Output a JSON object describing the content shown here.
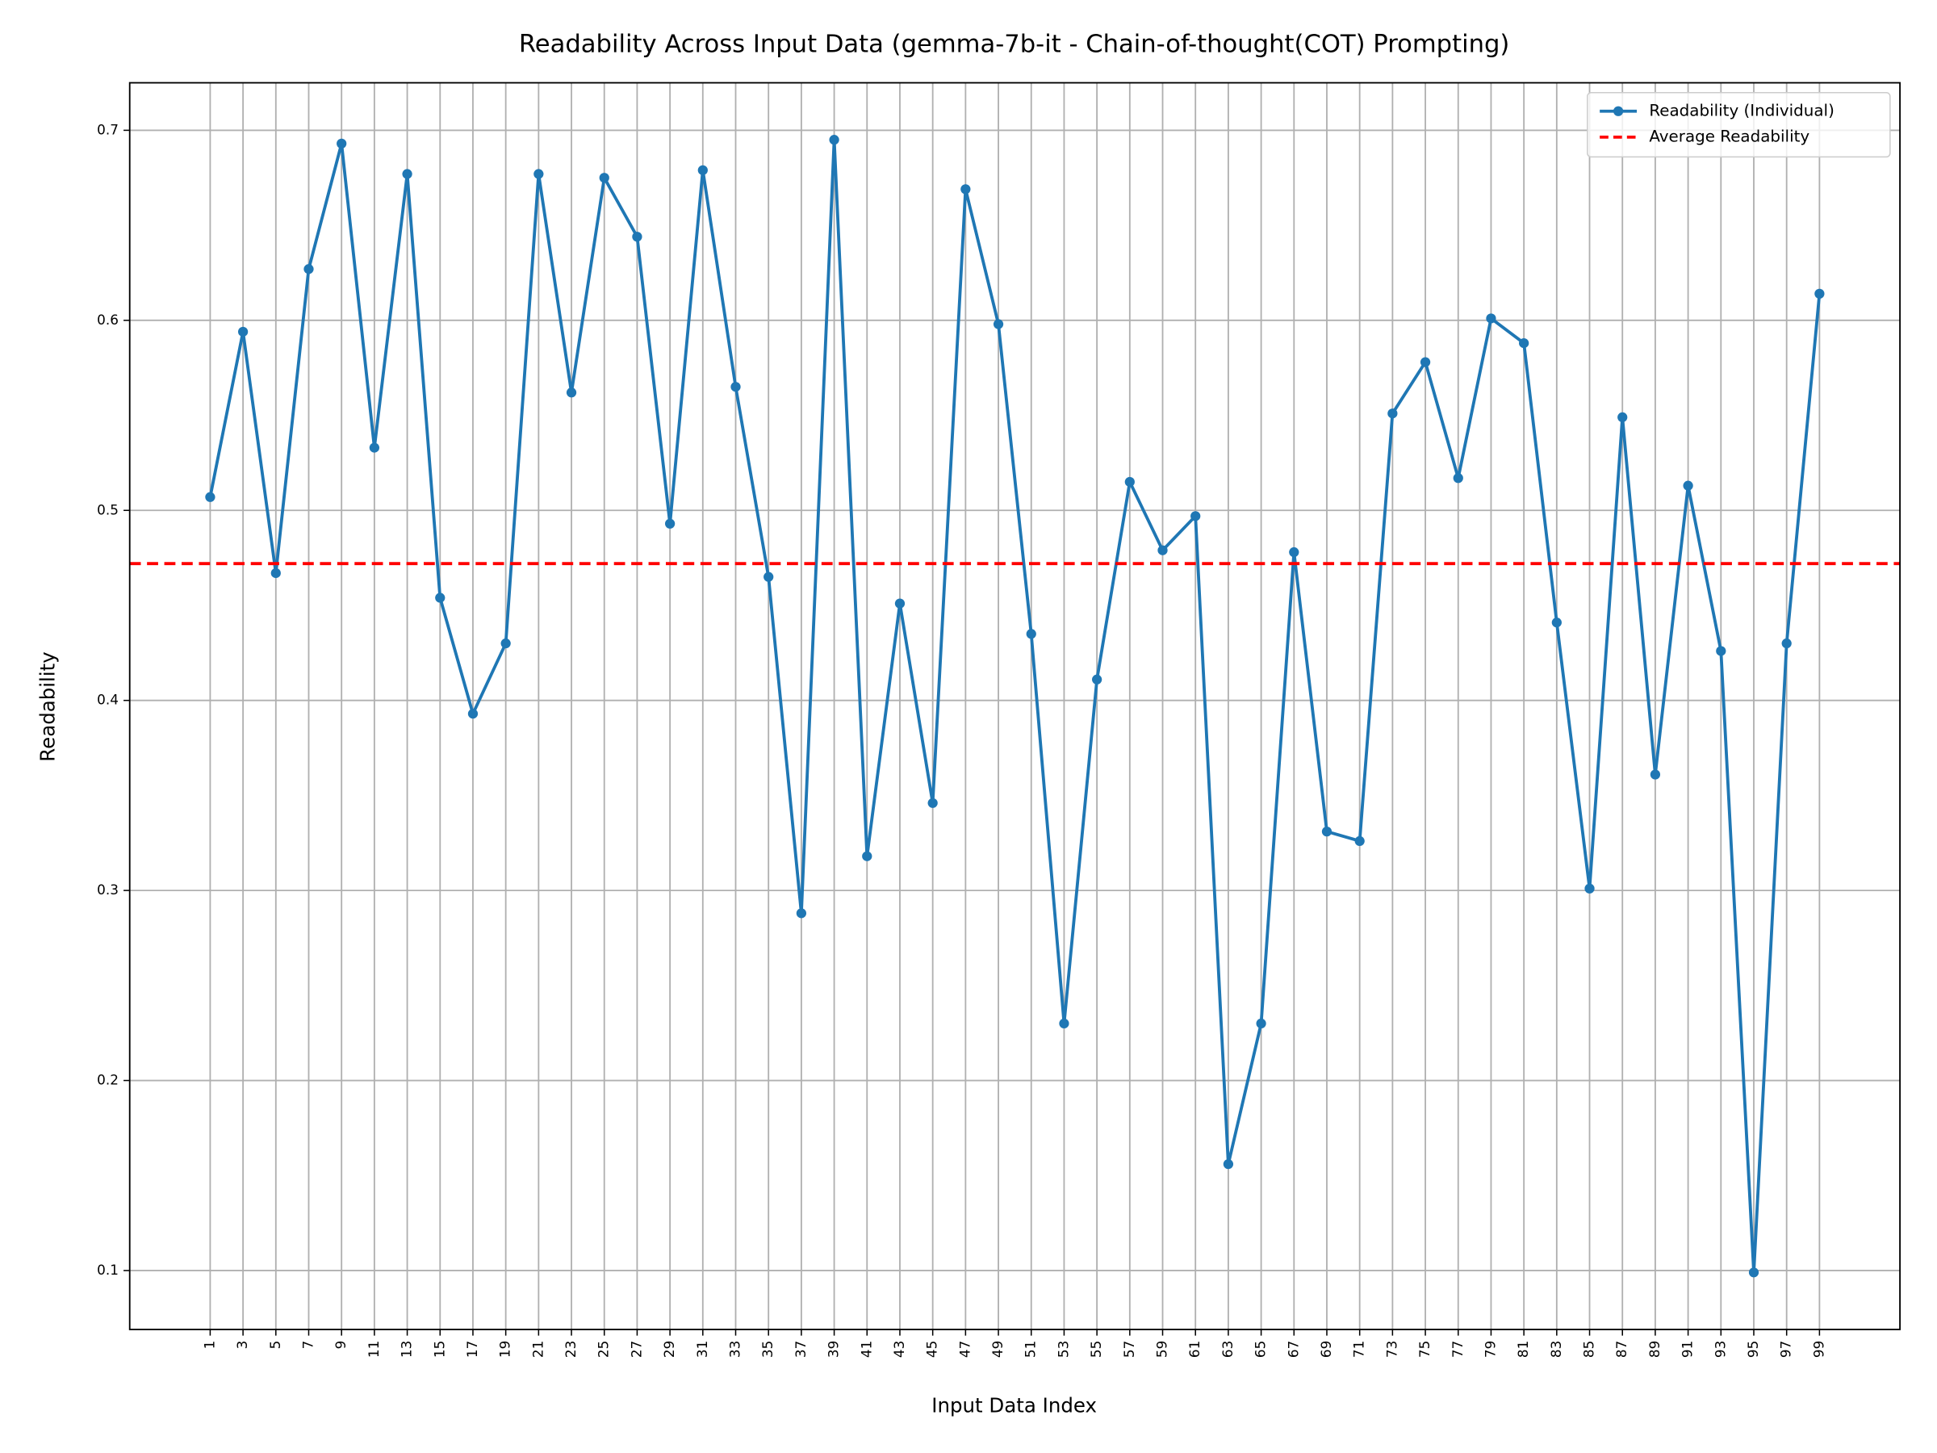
{
  "chart_data": {
    "type": "line",
    "title": "Readability Across Input Data (gemma-7b-it - Chain-of-thought(COT) Prompting)",
    "x_label": "Input Data Index",
    "y_label": "Readability",
    "x": [
      1,
      3,
      5,
      7,
      9,
      11,
      13,
      15,
      17,
      19,
      21,
      23,
      25,
      27,
      29,
      31,
      33,
      35,
      37,
      39,
      41,
      43,
      45,
      47,
      49,
      51,
      53,
      55,
      57,
      59,
      61,
      63,
      65,
      67,
      69,
      71,
      73,
      75,
      77,
      79,
      81,
      83,
      85,
      87,
      89,
      91,
      93,
      95,
      97,
      99
    ],
    "series": [
      {
        "name": "Readability (Individual)",
        "color": "#1f77b4",
        "values": [
          0.507,
          0.594,
          0.467,
          0.627,
          0.693,
          0.533,
          0.677,
          0.454,
          0.393,
          0.43,
          0.677,
          0.562,
          0.675,
          0.644,
          0.493,
          0.679,
          0.565,
          0.465,
          0.288,
          0.695,
          0.318,
          0.451,
          0.346,
          0.669,
          0.598,
          0.435,
          0.23,
          0.411,
          0.515,
          0.479,
          0.497,
          0.156,
          0.23,
          0.478,
          0.331,
          0.326,
          0.551,
          0.578,
          0.517,
          0.601,
          0.588,
          0.441,
          0.301,
          0.549,
          0.361,
          0.513,
          0.426,
          0.099,
          0.43,
          0.614
        ]
      }
    ],
    "average": {
      "name": "Average Readability",
      "value": 0.472,
      "color": "#ff0000"
    },
    "xlim": [
      -3.9,
      103.9
    ],
    "xticks": [
      1,
      3,
      5,
      7,
      9,
      11,
      13,
      15,
      17,
      19,
      21,
      23,
      25,
      27,
      29,
      31,
      33,
      35,
      37,
      39,
      41,
      43,
      45,
      47,
      49,
      51,
      53,
      55,
      57,
      59,
      61,
      63,
      65,
      67,
      69,
      71,
      73,
      75,
      77,
      79,
      81,
      83,
      85,
      87,
      89,
      91,
      93,
      95,
      97,
      99
    ],
    "ylim": [
      0.069,
      0.725
    ],
    "yticks": [
      0.1,
      0.2,
      0.3,
      0.4,
      0.5,
      0.6,
      0.7
    ],
    "grid": true,
    "legend": "upper right"
  }
}
